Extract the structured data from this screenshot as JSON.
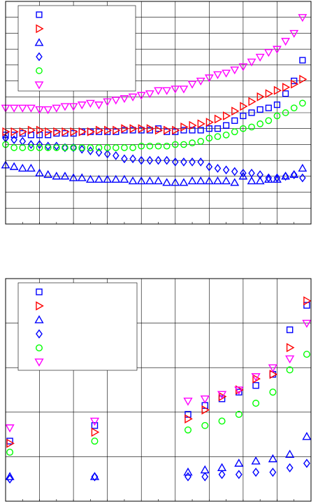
{
  "chart_data": [
    {
      "type": "scatter",
      "title": "",
      "xlabel": "",
      "ylabel": "",
      "xlim": [
        0,
        36
      ],
      "ylim": [
        0,
        14
      ],
      "grid": true,
      "legend_position": "top-left",
      "series": [
        {
          "marker": "square",
          "color": "#0000ff",
          "x": [
            0,
            1,
            2,
            3,
            4,
            5,
            6,
            7,
            8,
            9,
            10,
            11,
            12,
            13,
            14,
            15,
            16,
            17,
            18,
            19,
            20,
            21,
            22,
            23,
            24,
            25,
            26,
            27,
            28,
            29,
            30,
            31,
            32,
            33,
            34,
            35
          ],
          "y": [
            5.6,
            5.6,
            5.7,
            5.6,
            5.6,
            5.6,
            5.7,
            5.7,
            5.7,
            5.8,
            5.8,
            5.8,
            5.8,
            5.8,
            5.9,
            5.9,
            5.9,
            5.9,
            6.0,
            5.8,
            5.8,
            5.9,
            5.9,
            5.9,
            6.0,
            6.0,
            6.2,
            6.5,
            6.8,
            7.0,
            7.2,
            7.3,
            7.5,
            8.2,
            9.0,
            10.3
          ]
        },
        {
          "marker": "triangle-right",
          "color": "#ff0000",
          "x": [
            0,
            1,
            2,
            3,
            4,
            5,
            6,
            7,
            8,
            9,
            10,
            11,
            12,
            13,
            14,
            15,
            16,
            17,
            18,
            19,
            20,
            21,
            22,
            23,
            24,
            25,
            26,
            27,
            28,
            29,
            30,
            31,
            32,
            33,
            34,
            35
          ],
          "y": [
            5.8,
            5.8,
            5.8,
            5.9,
            5.9,
            5.8,
            5.8,
            5.8,
            5.8,
            5.8,
            5.8,
            5.9,
            5.9,
            5.9,
            6.0,
            6.0,
            6.0,
            6.0,
            5.9,
            5.9,
            5.9,
            6.1,
            6.2,
            6.3,
            6.4,
            6.6,
            6.8,
            7.1,
            7.4,
            7.7,
            8.0,
            8.2,
            8.4,
            8.6,
            8.8,
            9.1
          ]
        },
        {
          "marker": "triangle-up",
          "color": "#0000ff",
          "x": [
            0,
            1,
            2,
            3,
            4,
            5,
            6,
            7,
            8,
            9,
            10,
            11,
            12,
            13,
            14,
            15,
            16,
            17,
            18,
            19,
            20,
            21,
            22,
            23,
            24,
            25,
            26,
            27,
            28,
            29,
            30,
            31,
            32,
            33,
            34,
            35
          ],
          "y": [
            3.7,
            3.6,
            3.5,
            3.5,
            3.2,
            3.1,
            3.0,
            3.0,
            2.9,
            2.9,
            2.8,
            2.8,
            2.8,
            2.8,
            2.8,
            2.7,
            2.7,
            2.7,
            2.7,
            2.6,
            2.6,
            2.6,
            2.7,
            2.7,
            2.7,
            2.7,
            2.7,
            2.6,
            3.0,
            2.7,
            2.7,
            2.8,
            2.8,
            3.0,
            3.1,
            3.5
          ]
        },
        {
          "marker": "diamond",
          "color": "#0000ff",
          "x": [
            0,
            1,
            2,
            3,
            4,
            5,
            6,
            7,
            8,
            9,
            10,
            11,
            12,
            13,
            14,
            15,
            16,
            17,
            18,
            19,
            20,
            21,
            22,
            23,
            24,
            25,
            26,
            27,
            28,
            29,
            30,
            31,
            32,
            33,
            34,
            35
          ],
          "y": [
            5.4,
            5.3,
            5.2,
            5.0,
            5.0,
            4.9,
            4.9,
            4.8,
            4.8,
            4.7,
            4.6,
            4.5,
            4.4,
            4.3,
            4.1,
            4.1,
            4.0,
            4.0,
            4.0,
            4.0,
            3.9,
            3.9,
            3.9,
            3.9,
            3.6,
            3.5,
            3.4,
            3.3,
            3.2,
            3.2,
            3.1,
            2.9,
            2.9,
            3.0,
            3.1,
            2.9
          ]
        },
        {
          "marker": "circle",
          "color": "#00ff00",
          "x": [
            0,
            1,
            2,
            3,
            4,
            5,
            6,
            7,
            8,
            9,
            10,
            11,
            12,
            13,
            14,
            15,
            16,
            17,
            18,
            19,
            20,
            21,
            22,
            23,
            24,
            25,
            26,
            27,
            28,
            29,
            30,
            31,
            32,
            33,
            34,
            35
          ],
          "y": [
            5.0,
            4.8,
            4.8,
            4.8,
            4.8,
            4.8,
            4.8,
            4.8,
            4.8,
            4.8,
            4.8,
            4.8,
            4.8,
            4.8,
            4.8,
            4.8,
            4.9,
            4.9,
            4.9,
            4.9,
            5.0,
            5.0,
            5.1,
            5.2,
            5.4,
            5.5,
            5.6,
            5.8,
            6.0,
            6.1,
            6.3,
            6.5,
            6.8,
            7.0,
            7.3,
            7.6
          ]
        },
        {
          "marker": "triangle-down",
          "color": "#ff00ff",
          "x": [
            0,
            1,
            2,
            3,
            4,
            5,
            6,
            7,
            8,
            9,
            10,
            11,
            12,
            13,
            14,
            15,
            16,
            17,
            18,
            19,
            20,
            21,
            22,
            23,
            24,
            25,
            26,
            27,
            28,
            29,
            30,
            31,
            32,
            33,
            34,
            35
          ],
          "y": [
            7.3,
            7.3,
            7.3,
            7.3,
            7.2,
            7.2,
            7.3,
            7.4,
            7.4,
            7.5,
            7.6,
            7.5,
            7.7,
            7.8,
            7.9,
            8.0,
            8.1,
            8.2,
            8.4,
            8.4,
            8.5,
            8.5,
            8.8,
            9.0,
            9.2,
            9.4,
            9.5,
            9.7,
            9.9,
            10.2,
            10.5,
            10.8,
            11.0,
            11.5,
            12.0,
            13.0
          ]
        }
      ]
    },
    {
      "type": "scatter",
      "title": "",
      "xlabel": "",
      "ylabel": "",
      "xlim": [
        0,
        36
      ],
      "ylim": [
        0,
        5
      ],
      "grid": true,
      "legend_position": "top-left",
      "series": [
        {
          "marker": "square",
          "color": "#0000ff",
          "x": [
            0.5,
            10.5,
            21.5,
            23.5,
            25.5,
            27.5,
            29.5,
            31.5,
            33.5,
            35.5
          ],
          "y": [
            1.35,
            1.7,
            1.95,
            2.15,
            2.3,
            2.45,
            2.6,
            2.85,
            3.85,
            4.4
          ]
        },
        {
          "marker": "triangle-right",
          "color": "#ff0000",
          "x": [
            0.5,
            10.5,
            21.5,
            23.5,
            25.5,
            27.5,
            29.5,
            31.5,
            33.5,
            35.5
          ],
          "y": [
            1.3,
            1.55,
            1.85,
            2.05,
            2.35,
            2.5,
            2.75,
            2.85,
            3.45,
            4.5
          ]
        },
        {
          "marker": "triangle-up",
          "color": "#0000ff",
          "x": [
            0.5,
            10.5,
            21.5,
            23.5,
            25.5,
            27.5,
            29.5,
            31.5,
            33.5,
            35.5
          ],
          "y": [
            0.55,
            0.55,
            0.65,
            0.7,
            0.75,
            0.85,
            0.9,
            0.95,
            1.05,
            1.45
          ]
        },
        {
          "marker": "diamond",
          "color": "#0000ff",
          "x": [
            0.5,
            10.5,
            21.5,
            23.5,
            25.5,
            27.5,
            29.5,
            31.5,
            33.5,
            35.5
          ],
          "y": [
            0.5,
            0.55,
            0.55,
            0.55,
            0.6,
            0.6,
            0.65,
            0.65,
            0.75,
            0.85
          ]
        },
        {
          "marker": "circle",
          "color": "#00ff00",
          "x": [
            0.5,
            10.5,
            21.5,
            23.5,
            25.5,
            27.5,
            29.5,
            31.5,
            33.5,
            35.5
          ],
          "y": [
            1.1,
            1.35,
            1.6,
            1.7,
            1.8,
            1.95,
            2.2,
            2.45,
            2.95,
            3.3
          ]
        },
        {
          "marker": "triangle-down",
          "color": "#ff00ff",
          "x": [
            0.5,
            10.5,
            21.5,
            23.5,
            25.5,
            27.5,
            29.5,
            31.5,
            33.5,
            35.5
          ],
          "y": [
            1.65,
            1.8,
            2.25,
            2.3,
            2.4,
            2.5,
            2.8,
            3.0,
            3.2,
            4.0
          ]
        }
      ]
    }
  ]
}
